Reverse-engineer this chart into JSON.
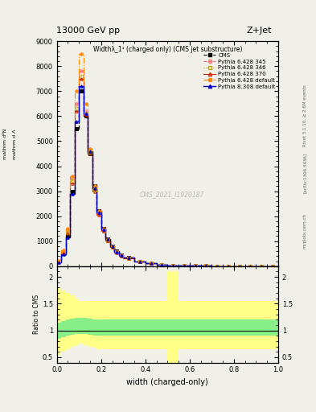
{
  "title_top": "13000 GeV pp",
  "title_right": "Z+Jet",
  "plot_title": "Widthλ_1¹ (charged only) (CMS jet substructure)",
  "xlabel": "width (charged-only)",
  "ylabel_ratio": "Ratio to CMS",
  "watermark": "CMS_2021_I1920187",
  "right_label_top": "Rivet 3.1.10, ≥ 2.6M events",
  "right_label_mid": "mcplots.cern.ch",
  "right_label_bot": "[arXiv:1306.3436]",
  "xlim": [
    0.0,
    1.0
  ],
  "ylim_main": [
    0,
    9000
  ],
  "ratio_yticks": [
    0.5,
    1.0,
    1.5,
    2.0
  ],
  "bin_edges": [
    0.0,
    0.02,
    0.04,
    0.06,
    0.08,
    0.1,
    0.12,
    0.14,
    0.16,
    0.18,
    0.2,
    0.22,
    0.24,
    0.26,
    0.28,
    0.3,
    0.35,
    0.4,
    0.45,
    0.5,
    0.55,
    0.6,
    0.65,
    0.7,
    0.75,
    0.8,
    0.85,
    0.9,
    0.95,
    1.0
  ],
  "cms_values": [
    200,
    500,
    1200,
    3000,
    5500,
    7000,
    6000,
    4500,
    3200,
    2200,
    1500,
    1100,
    800,
    600,
    450,
    350,
    200,
    120,
    70,
    40,
    25,
    18,
    12,
    8,
    6,
    5,
    4,
    3,
    2
  ],
  "pythia_345_values": [
    180,
    600,
    1400,
    3500,
    6500,
    7800,
    6200,
    4600,
    3100,
    2100,
    1450,
    1050,
    780,
    570,
    420,
    330,
    190,
    115,
    65,
    38,
    22,
    16,
    11,
    7,
    5,
    4,
    3,
    3,
    2
  ],
  "pythia_346_values": [
    190,
    580,
    1350,
    3400,
    6300,
    7600,
    6100,
    4550,
    3050,
    2080,
    1420,
    1030,
    760,
    560,
    410,
    320,
    185,
    112,
    63,
    37,
    22,
    15,
    10,
    7,
    5,
    4,
    3,
    2,
    2
  ],
  "pythia_370_values": [
    170,
    550,
    1300,
    3300,
    6200,
    7500,
    6050,
    4500,
    3000,
    2050,
    1400,
    1020,
    750,
    550,
    405,
    315,
    183,
    110,
    62,
    36,
    21,
    15,
    10,
    7,
    5,
    4,
    3,
    2,
    2
  ],
  "pythia_default_values": [
    210,
    620,
    1500,
    3600,
    7000,
    8500,
    6500,
    4700,
    3200,
    2200,
    1500,
    1100,
    800,
    580,
    430,
    340,
    195,
    118,
    67,
    39,
    23,
    17,
    12,
    8,
    6,
    5,
    4,
    3,
    2
  ],
  "pythia_8_values": [
    150,
    480,
    1150,
    2900,
    5800,
    7200,
    6100,
    4600,
    3100,
    2150,
    1480,
    1080,
    790,
    580,
    430,
    335,
    190,
    115,
    65,
    38,
    22,
    16,
    11,
    7,
    5,
    4,
    3,
    2,
    2
  ],
  "ratio_green_lo": [
    0.85,
    0.88,
    0.9,
    0.92,
    0.93,
    0.94,
    0.93,
    0.92,
    0.91,
    0.9,
    0.9,
    0.9,
    0.9,
    0.9,
    0.9,
    0.9,
    0.9,
    0.9,
    0.9,
    0.9,
    0.9,
    0.9,
    0.9,
    0.9,
    0.9,
    0.9,
    0.9,
    0.9,
    0.9
  ],
  "ratio_green_hi": [
    1.15,
    1.18,
    1.2,
    1.22,
    1.23,
    1.24,
    1.23,
    1.22,
    1.21,
    1.2,
    1.2,
    1.2,
    1.2,
    1.2,
    1.2,
    1.2,
    1.2,
    1.2,
    1.2,
    1.2,
    1.2,
    1.2,
    1.2,
    1.2,
    1.2,
    1.2,
    1.2,
    1.2,
    1.2
  ],
  "ratio_yellow_lo": [
    0.55,
    0.6,
    0.65,
    0.7,
    0.72,
    0.75,
    0.72,
    0.7,
    0.68,
    0.65,
    0.65,
    0.65,
    0.65,
    0.65,
    0.65,
    0.65,
    0.65,
    0.65,
    0.65,
    0.4,
    0.65,
    0.65,
    0.65,
    0.65,
    0.65,
    0.65,
    0.65,
    0.65,
    0.65
  ],
  "ratio_yellow_hi": [
    1.8,
    1.75,
    1.7,
    1.65,
    1.6,
    1.55,
    1.55,
    1.55,
    1.55,
    1.55,
    1.55,
    1.55,
    1.55,
    1.55,
    1.55,
    1.55,
    1.55,
    1.55,
    1.55,
    2.1,
    1.55,
    1.55,
    1.55,
    1.55,
    1.55,
    1.55,
    1.55,
    1.55,
    1.55
  ],
  "color_cms": "#000000",
  "color_345": "#ff6666",
  "color_346": "#ccaa00",
  "color_370": "#cc2200",
  "color_default": "#ff8800",
  "color_py8": "#0000cc",
  "bg_color": "#f0f0e8"
}
